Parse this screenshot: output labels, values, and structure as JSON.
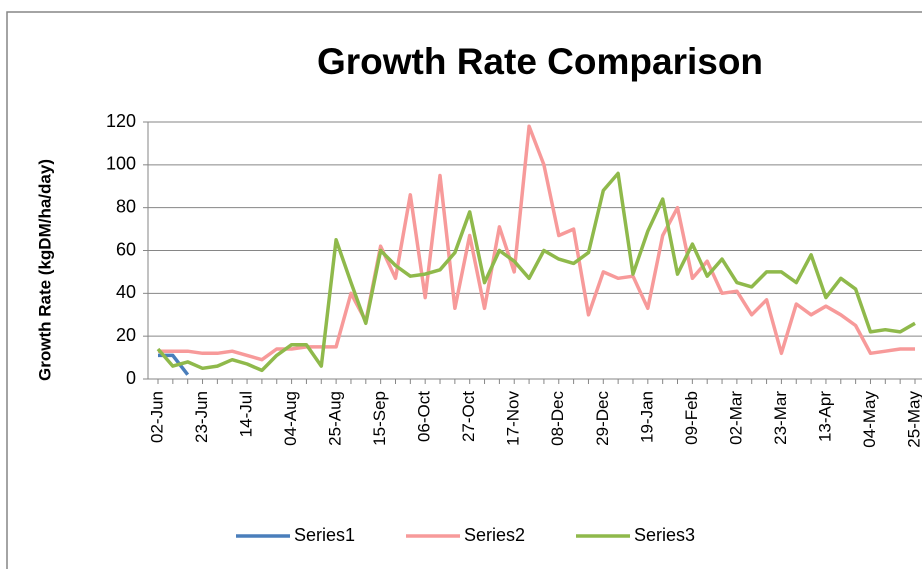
{
  "chart_data": {
    "type": "line",
    "title": "Growth Rate Comparison",
    "y_label": "Growth Rate (kgDM/ha/day)",
    "categories": [
      "02-Jun",
      null,
      null,
      "23-Jun",
      null,
      null,
      "14-Jul",
      null,
      null,
      "04-Aug",
      null,
      null,
      "25-Aug",
      null,
      null,
      "15-Sep",
      null,
      null,
      "06-Oct",
      null,
      null,
      "27-Oct",
      null,
      null,
      "17-Nov",
      null,
      null,
      "08-Dec",
      null,
      null,
      "29-Dec",
      null,
      null,
      "19-Jan",
      null,
      null,
      "09-Feb",
      null,
      null,
      "02-Mar",
      null,
      null,
      "23-Mar",
      null,
      null,
      "13-Apr",
      null,
      null,
      "04-May",
      null,
      null,
      "25-May"
    ],
    "series": [
      {
        "name": "Series1",
        "color": "#4a7ebb",
        "values": [
          11,
          11,
          2,
          null,
          null,
          null,
          null,
          null,
          null,
          null,
          null,
          null,
          null,
          null,
          null,
          null,
          null,
          null,
          null,
          null,
          null,
          null,
          null,
          null,
          null,
          null,
          null,
          null,
          null,
          null,
          null,
          null,
          null,
          null,
          null,
          null,
          null,
          null,
          null,
          null,
          null,
          null,
          null,
          null,
          null,
          null,
          null,
          null,
          null,
          null,
          null,
          null
        ]
      },
      {
        "name": "Series2",
        "color": "#f79a9a",
        "values": [
          13,
          13,
          13,
          12,
          12,
          13,
          11,
          9,
          14,
          14,
          15,
          15,
          15,
          40,
          27,
          62,
          47,
          86,
          38,
          95,
          33,
          67,
          33,
          71,
          50,
          118,
          100,
          67,
          70,
          30,
          50,
          47,
          48,
          33,
          67,
          80,
          47,
          55,
          40,
          41,
          30,
          37,
          12,
          35,
          30,
          34,
          30,
          25,
          12,
          13,
          14,
          14
        ]
      },
      {
        "name": "Series3",
        "color": "#8fb94b",
        "values": [
          14,
          6,
          8,
          5,
          6,
          9,
          7,
          4,
          11,
          16,
          16,
          6,
          65,
          45,
          26,
          60,
          53,
          48,
          49,
          51,
          59,
          78,
          45,
          60,
          55,
          47,
          60,
          56,
          54,
          59,
          88,
          96,
          49,
          69,
          84,
          49,
          63,
          48,
          56,
          45,
          43,
          50,
          50,
          45,
          58,
          38,
          47,
          42,
          22,
          23,
          22,
          26
        ]
      }
    ],
    "ylim": [
      0,
      120
    ],
    "yticks": [
      0,
      20,
      40,
      60,
      80,
      100,
      120
    ],
    "grid": true,
    "legend": "bottom"
  }
}
